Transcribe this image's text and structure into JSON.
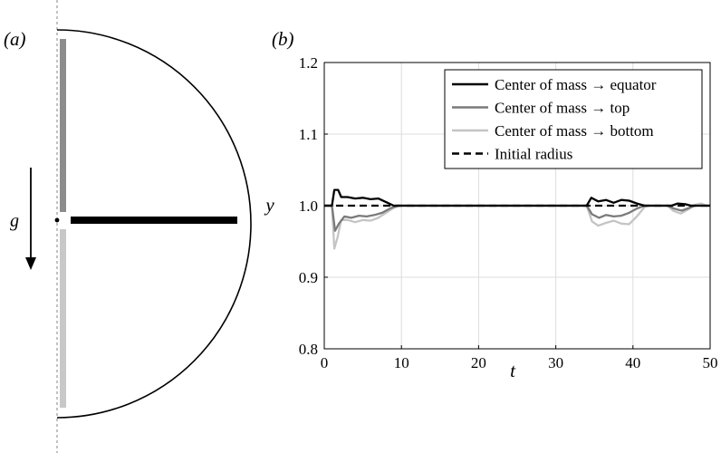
{
  "panel_a": {
    "label": "(a)",
    "g_label": "g",
    "colors": {
      "equator": "#000000",
      "top": "#8c8c8c",
      "bottom": "#c8c8c8",
      "outline": "#000000"
    }
  },
  "panel_b": {
    "label": "(b)"
  },
  "chart_data": {
    "type": "line",
    "xlabel": "t",
    "ylabel": "y",
    "xlim": [
      0,
      50
    ],
    "ylim": [
      0.8,
      1.2
    ],
    "xticks": [
      0,
      10,
      20,
      30,
      40,
      50
    ],
    "yticks": [
      0.8,
      0.9,
      1.0,
      1.1,
      1.2
    ],
    "xtick_labels": [
      "0",
      "10",
      "20",
      "30",
      "40",
      "50"
    ],
    "ytick_labels": [
      "0.8",
      "0.9",
      "1.0",
      "1.1",
      "1.2"
    ],
    "grid": true,
    "legend_position": "top-right",
    "series": [
      {
        "name": "Center of mass → equator",
        "color": "#000000",
        "dash": "solid",
        "points": [
          [
            0,
            1.0
          ],
          [
            1.0,
            1.0
          ],
          [
            1.3,
            1.022
          ],
          [
            1.8,
            1.022
          ],
          [
            2.2,
            1.012
          ],
          [
            3.0,
            1.012
          ],
          [
            4.0,
            1.01
          ],
          [
            5.0,
            1.011
          ],
          [
            6.0,
            1.009
          ],
          [
            7.0,
            1.01
          ],
          [
            8.0,
            1.005
          ],
          [
            9.0,
            1.0
          ],
          [
            34.0,
            1.0
          ],
          [
            34.6,
            1.011
          ],
          [
            35.5,
            1.006
          ],
          [
            36.5,
            1.008
          ],
          [
            37.5,
            1.004
          ],
          [
            38.5,
            1.008
          ],
          [
            39.5,
            1.007
          ],
          [
            40.5,
            1.003
          ],
          [
            41.5,
            1.0
          ],
          [
            45.0,
            1.0
          ],
          [
            45.8,
            1.003
          ],
          [
            46.8,
            1.002
          ],
          [
            47.5,
            1.0
          ],
          [
            50,
            1.0
          ]
        ]
      },
      {
        "name": "Center of mass → top",
        "color": "#7a7a7a",
        "dash": "solid",
        "points": [
          [
            0,
            1.0
          ],
          [
            1.0,
            1.0
          ],
          [
            1.4,
            0.965
          ],
          [
            1.9,
            0.975
          ],
          [
            2.6,
            0.985
          ],
          [
            3.5,
            0.983
          ],
          [
            4.5,
            0.986
          ],
          [
            5.5,
            0.985
          ],
          [
            6.5,
            0.987
          ],
          [
            7.5,
            0.99
          ],
          [
            8.5,
            0.996
          ],
          [
            9.5,
            1.0
          ],
          [
            34.0,
            1.0
          ],
          [
            34.7,
            0.988
          ],
          [
            35.6,
            0.983
          ],
          [
            36.5,
            0.987
          ],
          [
            37.5,
            0.985
          ],
          [
            38.5,
            0.986
          ],
          [
            39.5,
            0.99
          ],
          [
            40.5,
            0.996
          ],
          [
            41.5,
            1.0
          ],
          [
            44.5,
            1.0
          ],
          [
            45.3,
            0.996
          ],
          [
            46.3,
            0.993
          ],
          [
            47.3,
            0.997
          ],
          [
            48.0,
            1.0
          ],
          [
            50,
            1.0
          ]
        ]
      },
      {
        "name": "Center of mass → bottom",
        "color": "#c4c4c4",
        "dash": "solid",
        "points": [
          [
            0,
            1.0
          ],
          [
            1.0,
            1.0
          ],
          [
            1.3,
            0.94
          ],
          [
            1.7,
            0.955
          ],
          [
            2.2,
            0.98
          ],
          [
            3.0,
            0.98
          ],
          [
            4.0,
            0.977
          ],
          [
            5.0,
            0.98
          ],
          [
            6.0,
            0.979
          ],
          [
            7.0,
            0.983
          ],
          [
            8.0,
            0.99
          ],
          [
            9.0,
            0.997
          ],
          [
            9.8,
            1.0
          ],
          [
            34.0,
            1.0
          ],
          [
            34.7,
            0.978
          ],
          [
            35.5,
            0.972
          ],
          [
            36.5,
            0.976
          ],
          [
            37.5,
            0.979
          ],
          [
            38.5,
            0.975
          ],
          [
            39.5,
            0.974
          ],
          [
            40.5,
            0.985
          ],
          [
            41.5,
            0.998
          ],
          [
            42.0,
            1.0
          ],
          [
            44.5,
            1.0
          ],
          [
            45.2,
            0.993
          ],
          [
            46.2,
            0.989
          ],
          [
            47.2,
            0.995
          ],
          [
            48.0,
            1.001
          ],
          [
            48.8,
            1.003
          ],
          [
            49.5,
            1.0
          ],
          [
            50,
            1.0
          ]
        ]
      },
      {
        "name": "Initial radius",
        "color": "#000000",
        "dash": "dashed",
        "points": [
          [
            0,
            1.0
          ],
          [
            50,
            1.0
          ]
        ]
      }
    ]
  }
}
